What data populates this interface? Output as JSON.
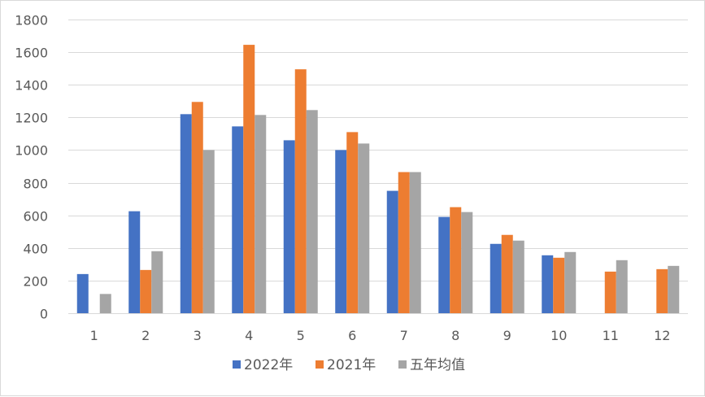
{
  "chart_data": {
    "type": "bar",
    "categories": [
      "1",
      "2",
      "3",
      "4",
      "5",
      "6",
      "7",
      "8",
      "9",
      "10",
      "11",
      "12"
    ],
    "series": [
      {
        "name": "2022年",
        "color": "#4472c4",
        "values": [
          240,
          625,
          1220,
          1145,
          1060,
          1000,
          750,
          590,
          425,
          355,
          null,
          null
        ]
      },
      {
        "name": "2021年",
        "color": "#ed7d31",
        "values": [
          null,
          265,
          1295,
          1645,
          1495,
          1110,
          865,
          650,
          480,
          340,
          255,
          270
        ]
      },
      {
        "name": "五年均值",
        "color": "#a5a5a5",
        "values": [
          118,
          380,
          1000,
          1215,
          1245,
          1040,
          865,
          620,
          445,
          375,
          325,
          290
        ]
      }
    ],
    "ylim": [
      0,
      1800
    ],
    "yticks": [
      0,
      200,
      400,
      600,
      800,
      1000,
      1200,
      1400,
      1600,
      1800
    ],
    "grid": true,
    "legend_position": "bottom",
    "title": "",
    "xlabel": "",
    "ylabel": ""
  }
}
